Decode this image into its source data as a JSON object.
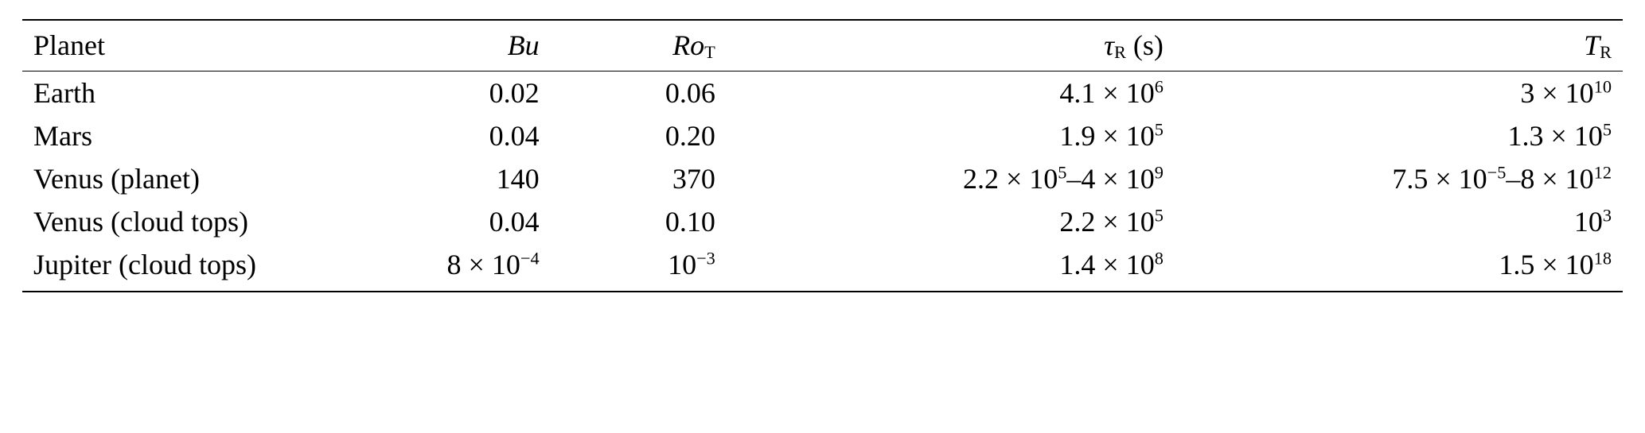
{
  "table": {
    "background_color": "#ffffff",
    "text_color": "#000000",
    "rule_color": "#000000",
    "font_family": "Times New Roman, serif",
    "base_fontsize_pt": 27,
    "columns": [
      {
        "key": "planet",
        "align": "left",
        "width_pct": 20,
        "header_html": "Planet"
      },
      {
        "key": "bu",
        "align": "right",
        "width_pct": 13,
        "header_html": "<span class=\"it\">Bu</span>"
      },
      {
        "key": "rot",
        "align": "right",
        "width_pct": 11,
        "header_html": "<span class=\"it\">Ro</span><sub>T</sub>"
      },
      {
        "key": "tau",
        "align": "right",
        "width_pct": 28,
        "header_html": "<span class=\"it\">τ</span><sub>R</sub> (s)"
      },
      {
        "key": "scrT",
        "align": "right",
        "width_pct": 28,
        "header_html": "<span class=\"scr\">T</span><sub>R</sub>"
      }
    ],
    "rows": [
      {
        "planet": "Earth",
        "bu": "0.02",
        "rot": "0.06",
        "tau": "4.1 × 10<sup>6</sup>",
        "scrT": "3 × 10<sup>10</sup>"
      },
      {
        "planet": "Mars",
        "bu": "0.04",
        "rot": "0.20",
        "tau": "1.9 × 10<sup>5</sup>",
        "scrT": "1.3 × 10<sup>5</sup>"
      },
      {
        "planet": "Venus (planet)",
        "bu": "140",
        "rot": "370",
        "tau": "2.2 × 10<sup>5</sup>–4 × 10<sup>9</sup>",
        "scrT": "7.5 × 10<sup>−5</sup>–8 × 10<sup>12</sup>"
      },
      {
        "planet": "Venus (cloud tops)",
        "bu": "0.04",
        "rot": "0.10",
        "tau": "2.2 × 10<sup>5</sup>",
        "scrT": "10<sup>3</sup>"
      },
      {
        "planet": "Jupiter (cloud tops)",
        "bu": "8 × 10<sup>−4</sup>",
        "rot": "10<sup>−3</sup>",
        "tau": "1.4 × 10<sup>8</sup>",
        "scrT": "1.5 × 10<sup>18</sup>"
      }
    ]
  }
}
